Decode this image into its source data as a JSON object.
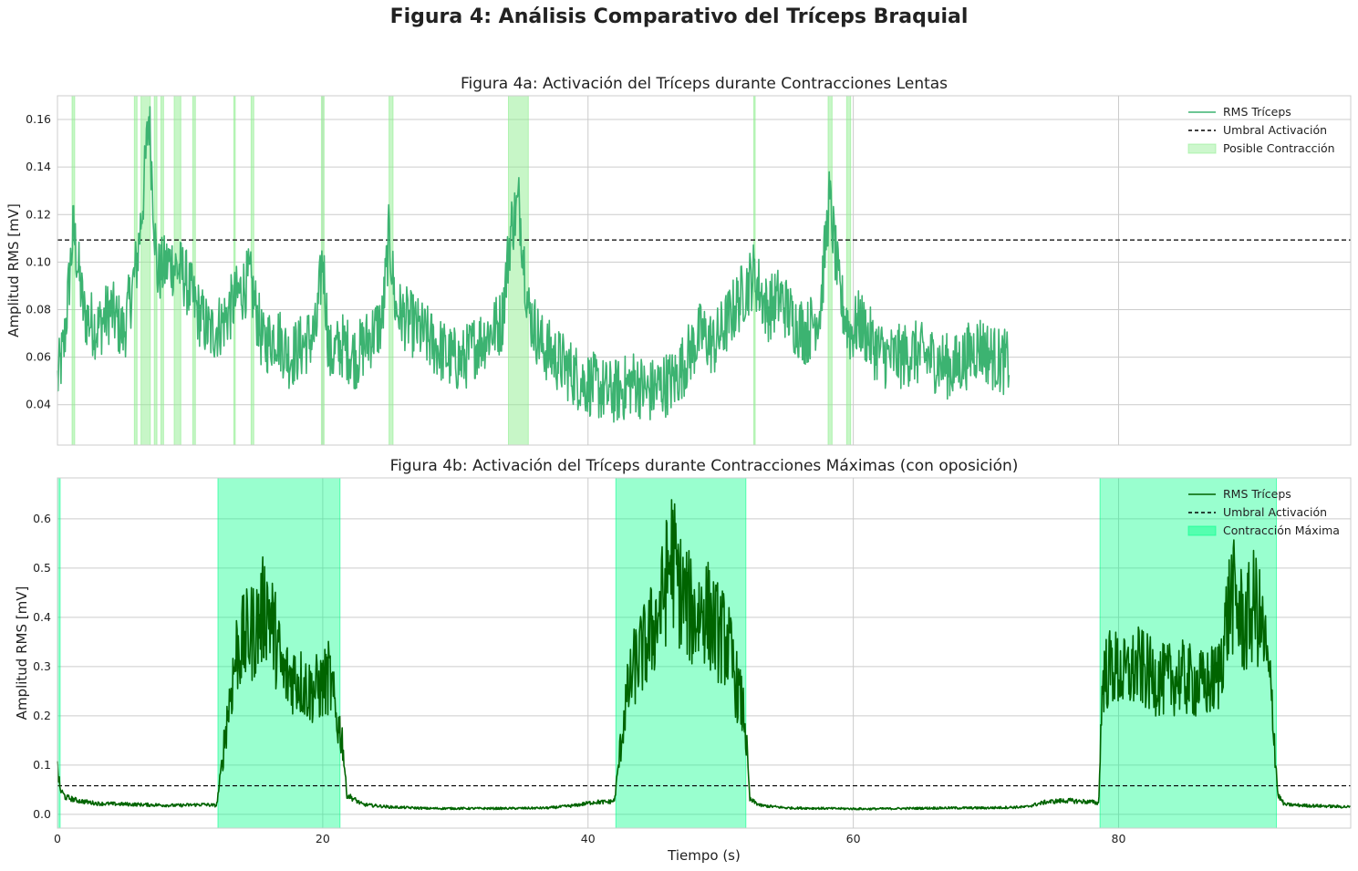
{
  "figure_title": "Figura 4: Análisis Comparativo del Tríceps Braquial",
  "colors": {
    "rms_a": "#3cb371",
    "rms_b": "#006400",
    "threshold": "#000000",
    "span_a": "#90ee90",
    "span_b": "#00ff88",
    "grid": "#cccccc",
    "frame": "#cccccc"
  },
  "chart_data": [
    {
      "type": "line",
      "title": "Figura 4a: Activación del Tríceps durante Contracciones Lentas",
      "xlabel": "",
      "ylabel": "Amplitud RMS [mV]",
      "xlim": [
        0,
        97.5
      ],
      "ylim": [
        0.023,
        0.17
      ],
      "xticks": [
        0,
        20,
        40,
        60,
        80
      ],
      "xtick_labels_shown": false,
      "yticks": [
        0.04,
        0.06,
        0.08,
        0.1,
        0.12,
        0.14,
        0.16
      ],
      "ytick_labels": [
        "0.04",
        "0.06",
        "0.08",
        "0.10",
        "0.12",
        "0.14",
        "0.16"
      ],
      "grid": true,
      "legend_position": "top-right",
      "threshold": {
        "name": "Umbral Activación",
        "value": 0.1093
      },
      "series": [
        {
          "name": "RMS Tríceps",
          "x": [
            0,
            0.5,
            1.2,
            2,
            3,
            4,
            5,
            6,
            6.5,
            6.9,
            7.5,
            8.5,
            9.5,
            10.5,
            11.5,
            12.5,
            13.5,
            14.5,
            15.5,
            16.5,
            17.5,
            18.5,
            19.5,
            20,
            20.5,
            21.5,
            22.5,
            23.5,
            24.5,
            25,
            25.5,
            26.5,
            27.5,
            28.5,
            29.5,
            30.5,
            31.5,
            32.5,
            33.5,
            34.2,
            34.8,
            35.5,
            36.5,
            37.5,
            38.5,
            39.5,
            40.5,
            41.5,
            42.5,
            43.5,
            44.5,
            45.5,
            46.5,
            47.5,
            48.5,
            49.5,
            50.5,
            51.5,
            52.5,
            53.5,
            54.5,
            55.5,
            56.5,
            57.5,
            58.2,
            59,
            59.8,
            60.5,
            61.5,
            62.5,
            63.5,
            64.5,
            65.5,
            66.5,
            67.5,
            68.5,
            69.5,
            70.5,
            71.2,
            71.8
          ],
          "values": [
            0.05,
            0.065,
            0.114,
            0.078,
            0.072,
            0.08,
            0.07,
            0.1,
            0.13,
            0.163,
            0.095,
            0.1,
            0.095,
            0.08,
            0.07,
            0.075,
            0.085,
            0.093,
            0.065,
            0.07,
            0.06,
            0.065,
            0.07,
            0.103,
            0.06,
            0.065,
            0.06,
            0.068,
            0.075,
            0.112,
            0.08,
            0.075,
            0.07,
            0.065,
            0.06,
            0.058,
            0.065,
            0.07,
            0.075,
            0.115,
            0.125,
            0.08,
            0.065,
            0.06,
            0.055,
            0.05,
            0.048,
            0.045,
            0.046,
            0.05,
            0.045,
            0.048,
            0.05,
            0.06,
            0.07,
            0.065,
            0.075,
            0.085,
            0.095,
            0.08,
            0.085,
            0.075,
            0.07,
            0.08,
            0.127,
            0.085,
            0.07,
            0.075,
            0.065,
            0.06,
            0.06,
            0.062,
            0.06,
            0.058,
            0.055,
            0.06,
            0.065,
            0.06,
            0.058,
            0.058
          ]
        }
      ],
      "spans": {
        "name": "Posible Contracción",
        "ranges": [
          [
            1.1,
            1.3
          ],
          [
            5.8,
            6.0
          ],
          [
            6.3,
            7.0
          ],
          [
            7.3,
            7.5
          ],
          [
            7.8,
            8.0
          ],
          [
            8.8,
            9.3
          ],
          [
            10.2,
            10.4
          ],
          [
            13.3,
            13.4
          ],
          [
            14.6,
            14.8
          ],
          [
            19.9,
            20.1
          ],
          [
            25.0,
            25.3
          ],
          [
            34.0,
            35.5
          ],
          [
            52.5,
            52.6
          ],
          [
            58.1,
            58.4
          ],
          [
            59.5,
            59.8
          ]
        ]
      }
    },
    {
      "type": "line",
      "title": "Figura 4b: Activación del Tríceps durante Contracciones Máximas (con oposición)",
      "xlabel": "Tiempo (s)",
      "ylabel": "Amplitud RMS [mV]",
      "xlim": [
        0,
        97.5
      ],
      "ylim": [
        -0.028,
        0.683
      ],
      "xticks": [
        0,
        20,
        40,
        60,
        80
      ],
      "xtick_labels": [
        "0",
        "20",
        "40",
        "60",
        "80"
      ],
      "yticks": [
        0.0,
        0.1,
        0.2,
        0.3,
        0.4,
        0.5,
        0.6
      ],
      "ytick_labels": [
        "0.0",
        "0.1",
        "0.2",
        "0.3",
        "0.4",
        "0.5",
        "0.6"
      ],
      "grid": true,
      "legend_position": "top-right",
      "threshold": {
        "name": "Umbral Activación",
        "value": 0.058
      },
      "series": [
        {
          "name": "RMS Tríceps",
          "x": [
            0,
            0.2,
            0.6,
            1.5,
            3,
            6,
            9,
            11,
            12,
            12.3,
            12.8,
            13.5,
            14,
            15,
            15.8,
            16.5,
            17,
            18,
            19,
            20,
            20.5,
            21,
            21.5,
            21.8,
            23,
            25,
            28,
            31,
            34,
            37,
            39,
            40.5,
            41.5,
            42,
            42.3,
            42.8,
            43.5,
            44.5,
            45.5,
            46.3,
            47,
            48,
            48.8,
            49.5,
            50.5,
            51.3,
            51.8,
            52.2,
            53,
            55,
            58,
            61,
            64,
            67,
            70,
            73,
            74.5,
            76,
            78,
            78.5,
            78.8,
            79.5,
            80.5,
            81.5,
            82.5,
            83.5,
            84.5,
            85.5,
            86.5,
            87.5,
            88.5,
            89.5,
            90.3,
            91,
            91.6,
            92,
            92.5,
            94,
            97.5
          ],
          "values": [
            0.095,
            0.05,
            0.035,
            0.028,
            0.022,
            0.02,
            0.018,
            0.02,
            0.018,
            0.08,
            0.2,
            0.33,
            0.35,
            0.38,
            0.43,
            0.35,
            0.28,
            0.28,
            0.25,
            0.26,
            0.28,
            0.2,
            0.15,
            0.04,
            0.02,
            0.015,
            0.012,
            0.012,
            0.012,
            0.013,
            0.018,
            0.025,
            0.025,
            0.028,
            0.1,
            0.22,
            0.3,
            0.35,
            0.42,
            0.53,
            0.45,
            0.4,
            0.42,
            0.38,
            0.35,
            0.25,
            0.2,
            0.03,
            0.018,
            0.013,
            0.012,
            0.011,
            0.012,
            0.013,
            0.013,
            0.015,
            0.025,
            0.028,
            0.025,
            0.022,
            0.28,
            0.3,
            0.28,
            0.3,
            0.28,
            0.27,
            0.28,
            0.27,
            0.26,
            0.28,
            0.45,
            0.38,
            0.43,
            0.35,
            0.22,
            0.04,
            0.02,
            0.018,
            0.015
          ]
        }
      ],
      "spans": {
        "name": "Contracción Máxima",
        "ranges": [
          [
            0,
            0.2
          ],
          [
            12.1,
            21.3
          ],
          [
            42.1,
            51.9
          ],
          [
            78.6,
            91.9
          ]
        ]
      }
    }
  ]
}
